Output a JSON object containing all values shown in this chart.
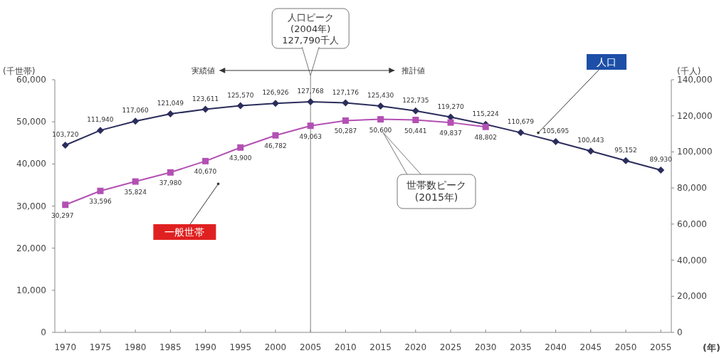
{
  "chart_data": {
    "type": "line",
    "x": [
      1970,
      1975,
      1980,
      1985,
      1990,
      1995,
      2000,
      2005,
      2010,
      2015,
      2020,
      2025,
      2030,
      2035,
      2040,
      2045,
      2050,
      2055
    ],
    "xlim": [
      1968.5,
      2056.5
    ],
    "xticks": [
      1970,
      1975,
      1980,
      1985,
      1990,
      1995,
      2000,
      2005,
      2010,
      2015,
      2020,
      2025,
      2030,
      2035,
      2040,
      2045,
      2050,
      2055
    ],
    "xlabel": "(年)",
    "ylabel": "(千世帯)",
    "y2label": "(千人)",
    "ylim": [
      0,
      60000
    ],
    "yticks": [
      {
        "value": 0,
        "label": "0"
      },
      {
        "value": 10000,
        "label": "10,000"
      },
      {
        "value": 20000,
        "label": "20,000"
      },
      {
        "value": 30000,
        "label": "30,000"
      },
      {
        "value": 40000,
        "label": "40,000"
      },
      {
        "value": 50000,
        "label": "50,000"
      },
      {
        "value": 60000,
        "label": "60,000"
      }
    ],
    "y2lim": [
      0,
      140000
    ],
    "y2ticks": [
      {
        "value": 0,
        "label": "0"
      },
      {
        "value": 20000,
        "label": "20,000"
      },
      {
        "value": 40000,
        "label": "40,000"
      },
      {
        "value": 60000,
        "label": "60,000"
      },
      {
        "value": 80000,
        "label": "80,000"
      },
      {
        "value": 100000,
        "label": "100,000"
      },
      {
        "value": 120000,
        "label": "120,000"
      },
      {
        "value": 140000,
        "label": "140,000"
      }
    ],
    "series": [
      {
        "name": "人口",
        "color": "#2b2d5c",
        "axis": "y2",
        "marker": "diamond",
        "values": [
          103720,
          111940,
          117060,
          121049,
          123611,
          125570,
          126926,
          127768,
          127176,
          125430,
          122735,
          119270,
          115224,
          110679,
          105695,
          100443,
          95152,
          89930
        ],
        "value_labels": [
          "103,720",
          "111,940",
          "117,060",
          "121,049",
          "123,611",
          "125,570",
          "126,926",
          "127,768",
          "127,176",
          "125,430",
          "122,735",
          "119,270",
          "115,224",
          "110,679",
          "105,695",
          "100,443",
          "95,152",
          "89,930"
        ]
      },
      {
        "name": "一般世帯",
        "color": "#b350b3",
        "marker": "square",
        "values": [
          30297,
          33596,
          35824,
          37980,
          40670,
          43900,
          46782,
          49063,
          50287,
          50600,
          50441,
          49837,
          48802,
          null,
          null,
          null,
          null,
          null
        ],
        "value_labels": [
          "30,297",
          "33,596",
          "35,824",
          "37,980",
          "40,670",
          "43,900",
          "46,782",
          "49,063",
          "50,287",
          "50,600",
          "50,441",
          "49,837",
          "48,802",
          null,
          null,
          null,
          null,
          null
        ]
      }
    ],
    "ref_lines": [
      {
        "axis": "x",
        "value": 2005,
        "color": "#808080"
      }
    ],
    "annotations": [
      "人口ピーク\n(2004年)\n127,790千人",
      "実績値",
      "推計値",
      "世帯数ピーク\n(2015年)"
    ]
  }
}
